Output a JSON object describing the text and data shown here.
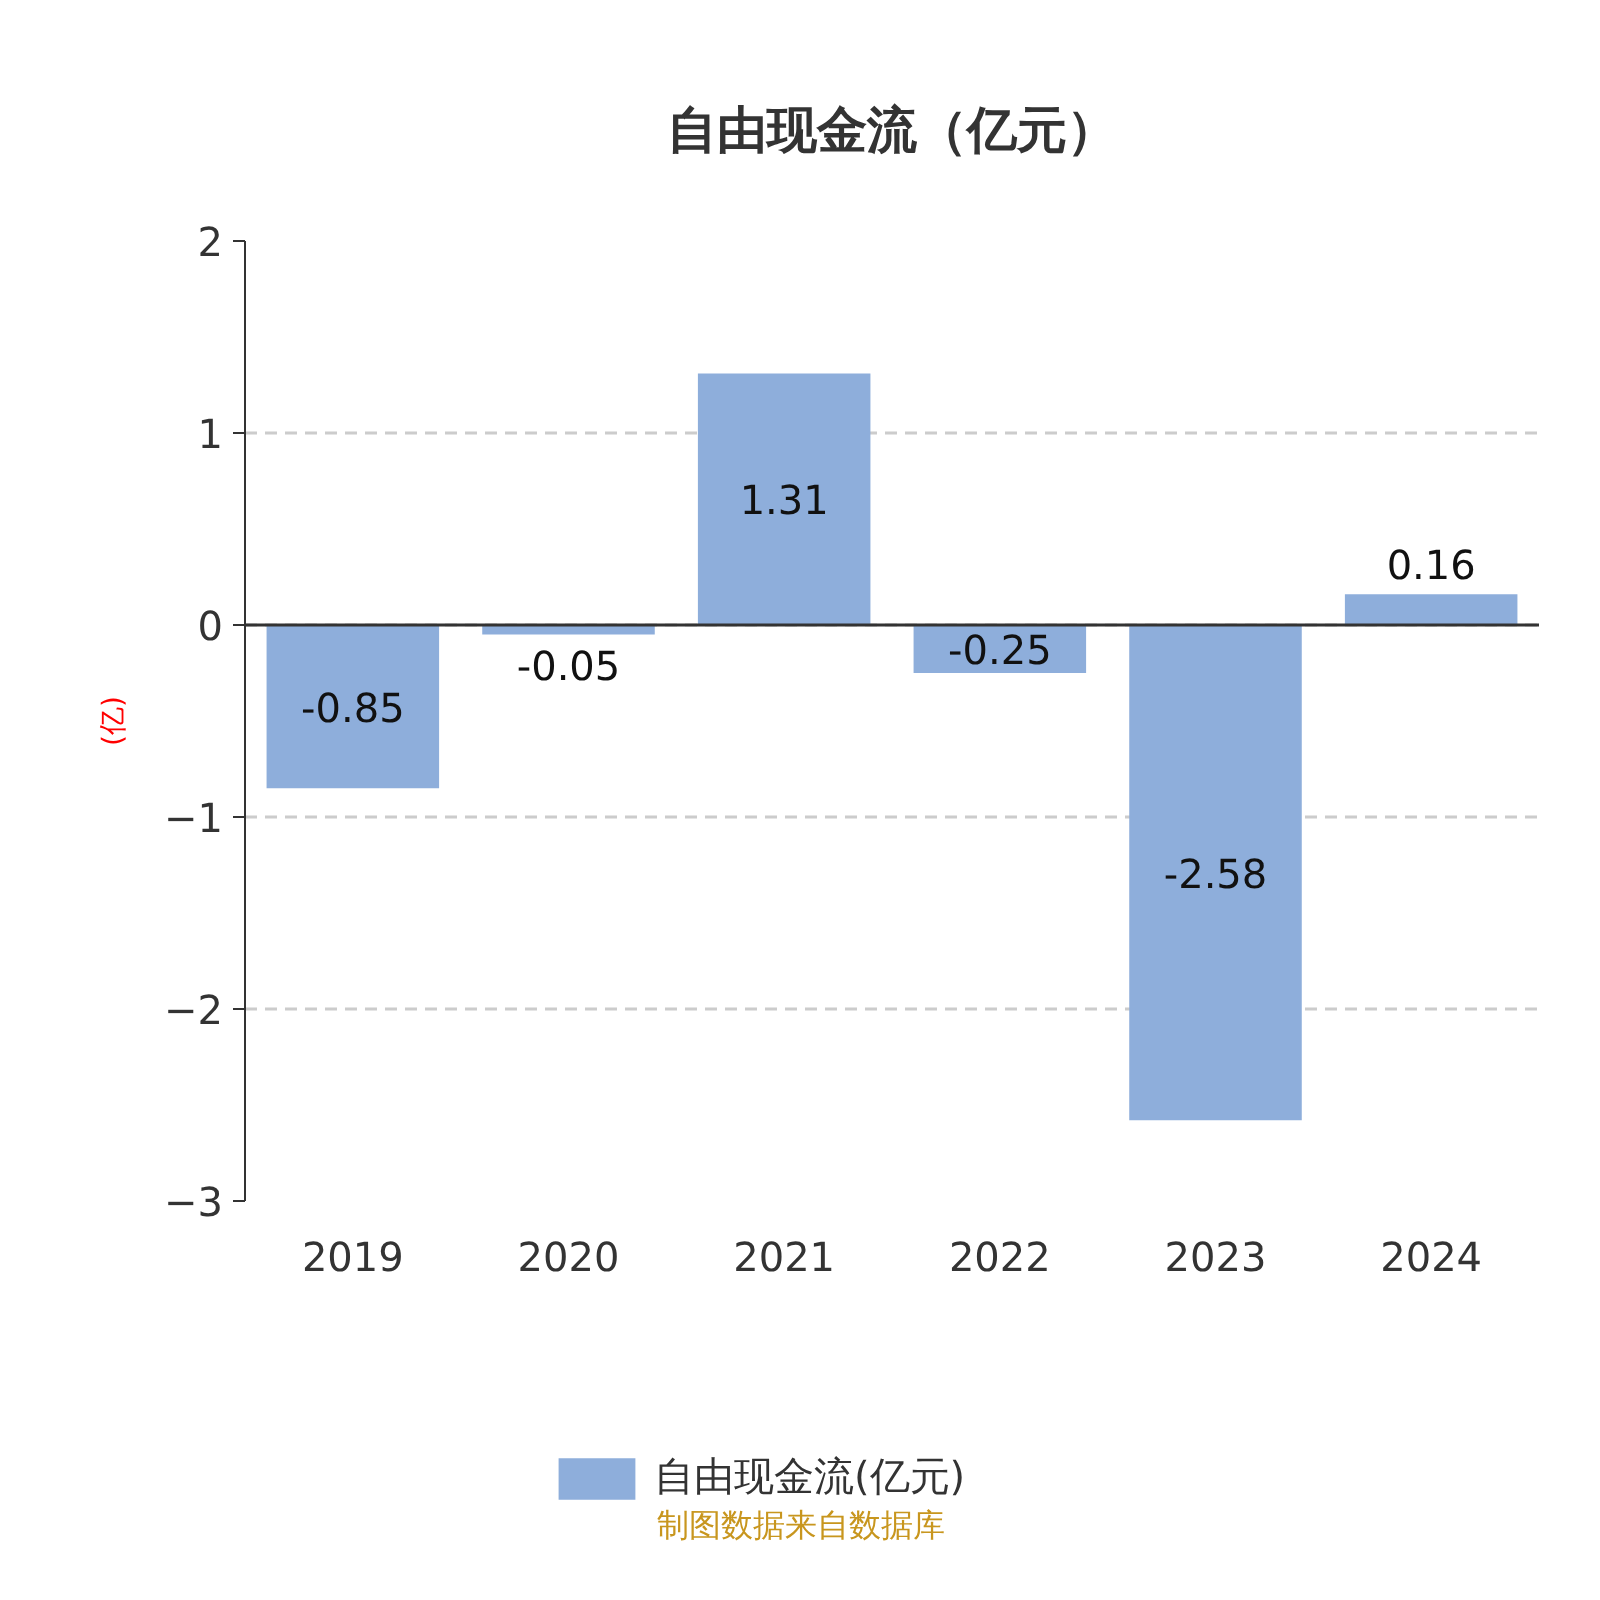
{
  "chart_data": {
    "type": "bar",
    "title": "自由现金流（亿元）",
    "ylabel": "(亿)",
    "categories": [
      "2019",
      "2020",
      "2021",
      "2022",
      "2023",
      "2024"
    ],
    "series": [
      {
        "name": "自由现金流(亿元)",
        "color": "#8eaedb",
        "values": [
          -0.85,
          -0.05,
          1.31,
          -0.25,
          -2.58,
          0.16
        ]
      }
    ],
    "ylim": [
      -3,
      2
    ],
    "yticks": [
      -3,
      -2,
      -1,
      0,
      1,
      2
    ],
    "grid": "y",
    "legend": "bottom",
    "data_labels": true,
    "annotations": [
      "制图数据来自数据库"
    ]
  }
}
